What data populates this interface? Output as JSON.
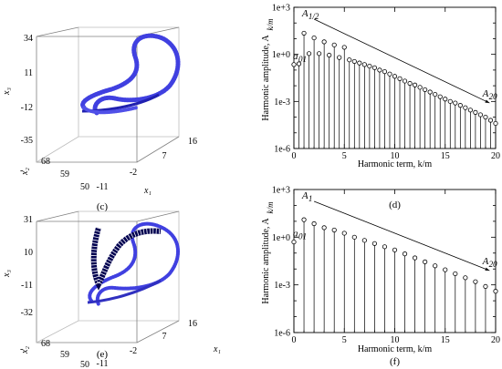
{
  "panels": [
    {
      "caption": "(c)",
      "axes": {
        "x1": {
          "label": "x₁",
          "ticks": [
            "-11",
            "-2",
            "7",
            "16"
          ]
        },
        "x2": {
          "label": "x₂",
          "prefix": "-",
          "ticks": [
            "68",
            "59",
            "50"
          ]
        },
        "x3": {
          "label": "x₃",
          "ticks": [
            "34",
            "11",
            "-12",
            "-35"
          ]
        }
      }
    },
    {
      "caption": "(e)",
      "axes": {
        "x1": {
          "label": "x₁",
          "ticks": [
            "-11",
            "-2",
            "7",
            "16"
          ]
        },
        "x2": {
          "label": "x₂",
          "prefix": "-",
          "ticks": [
            "68",
            "59",
            "50"
          ]
        },
        "x3": {
          "label": "x₃",
          "ticks": [
            "31",
            "10",
            "-11",
            "-32"
          ]
        }
      }
    }
  ],
  "colors": {
    "trajectory": "#3a3ae0",
    "dense_band": "#000060",
    "markers": "#000000",
    "box": "#7a7a7a"
  },
  "chart_data": [
    {
      "type": "stem",
      "caption": "(d)",
      "xlabel": "Harmonic term,  k/m",
      "ylabel": "Harmonic amplitude,  A",
      "ylabel_sub": "k/m",
      "xlim": [
        0,
        20
      ],
      "ylim_exp": [
        -6,
        3
      ],
      "yscale": "log",
      "xticks": [
        "0",
        "5",
        "10",
        "15",
        "20"
      ],
      "yticks": [
        "1e-6",
        "1e-3",
        "1e+0",
        "1e+3"
      ],
      "annotations": {
        "start": "A",
        "start_sub": "1/2",
        "end": "A",
        "end_sub": "20",
        "zero": "a",
        "zero_sub": "01"
      },
      "x": [
        0,
        0.5,
        1,
        1.5,
        2,
        2.5,
        3,
        3.5,
        4,
        4.5,
        5,
        5.5,
        6,
        6.5,
        7,
        7.5,
        8,
        8.5,
        9,
        9.5,
        10,
        10.5,
        11,
        11.5,
        12,
        12.5,
        13,
        13.5,
        14,
        14.5,
        15,
        15.5,
        16,
        16.5,
        17,
        17.5,
        18,
        18.5,
        19,
        19.5,
        20
      ],
      "log10_values": [
        -0.65,
        -0.6,
        1.35,
        0.05,
        1.05,
        0.05,
        0.8,
        -0.05,
        0.6,
        -0.2,
        0.45,
        -0.35,
        -0.45,
        -0.55,
        -0.65,
        -0.75,
        -0.85,
        -1.0,
        -1.1,
        -1.25,
        -1.4,
        -1.55,
        -1.7,
        -1.85,
        -1.95,
        -2.1,
        -2.25,
        -2.4,
        -2.55,
        -2.7,
        -2.85,
        -3.0,
        -3.1,
        -3.25,
        -3.4,
        -3.55,
        -3.7,
        -3.85,
        -4.0,
        -4.2,
        -4.4
      ]
    },
    {
      "type": "stem",
      "caption": "(f)",
      "xlabel": "Harmonic term,  k/m",
      "ylabel": "Harmonic amplitude,  A",
      "ylabel_sub": "k/m",
      "xlim": [
        0,
        20
      ],
      "ylim_exp": [
        -6,
        3
      ],
      "yscale": "log",
      "xticks": [
        "0",
        "5",
        "10",
        "15",
        "20"
      ],
      "yticks": [
        "1e-6",
        "1e-3",
        "1e+0",
        "1e+3"
      ],
      "annotations": {
        "start": "A",
        "start_sub": "1",
        "end": "A",
        "end_sub": "20",
        "zero": "a",
        "zero_sub": "01"
      },
      "x": [
        0,
        1,
        2,
        3,
        4,
        5,
        6,
        7,
        8,
        9,
        10,
        11,
        12,
        13,
        14,
        15,
        16,
        17,
        18,
        19,
        20
      ],
      "log10_values": [
        -0.3,
        1.1,
        0.85,
        0.6,
        0.45,
        0.25,
        0.0,
        -0.2,
        -0.4,
        -0.6,
        -0.8,
        -1.05,
        -1.3,
        -1.55,
        -1.8,
        -2.05,
        -2.3,
        -2.55,
        -2.8,
        -3.1,
        -3.4
      ]
    }
  ]
}
